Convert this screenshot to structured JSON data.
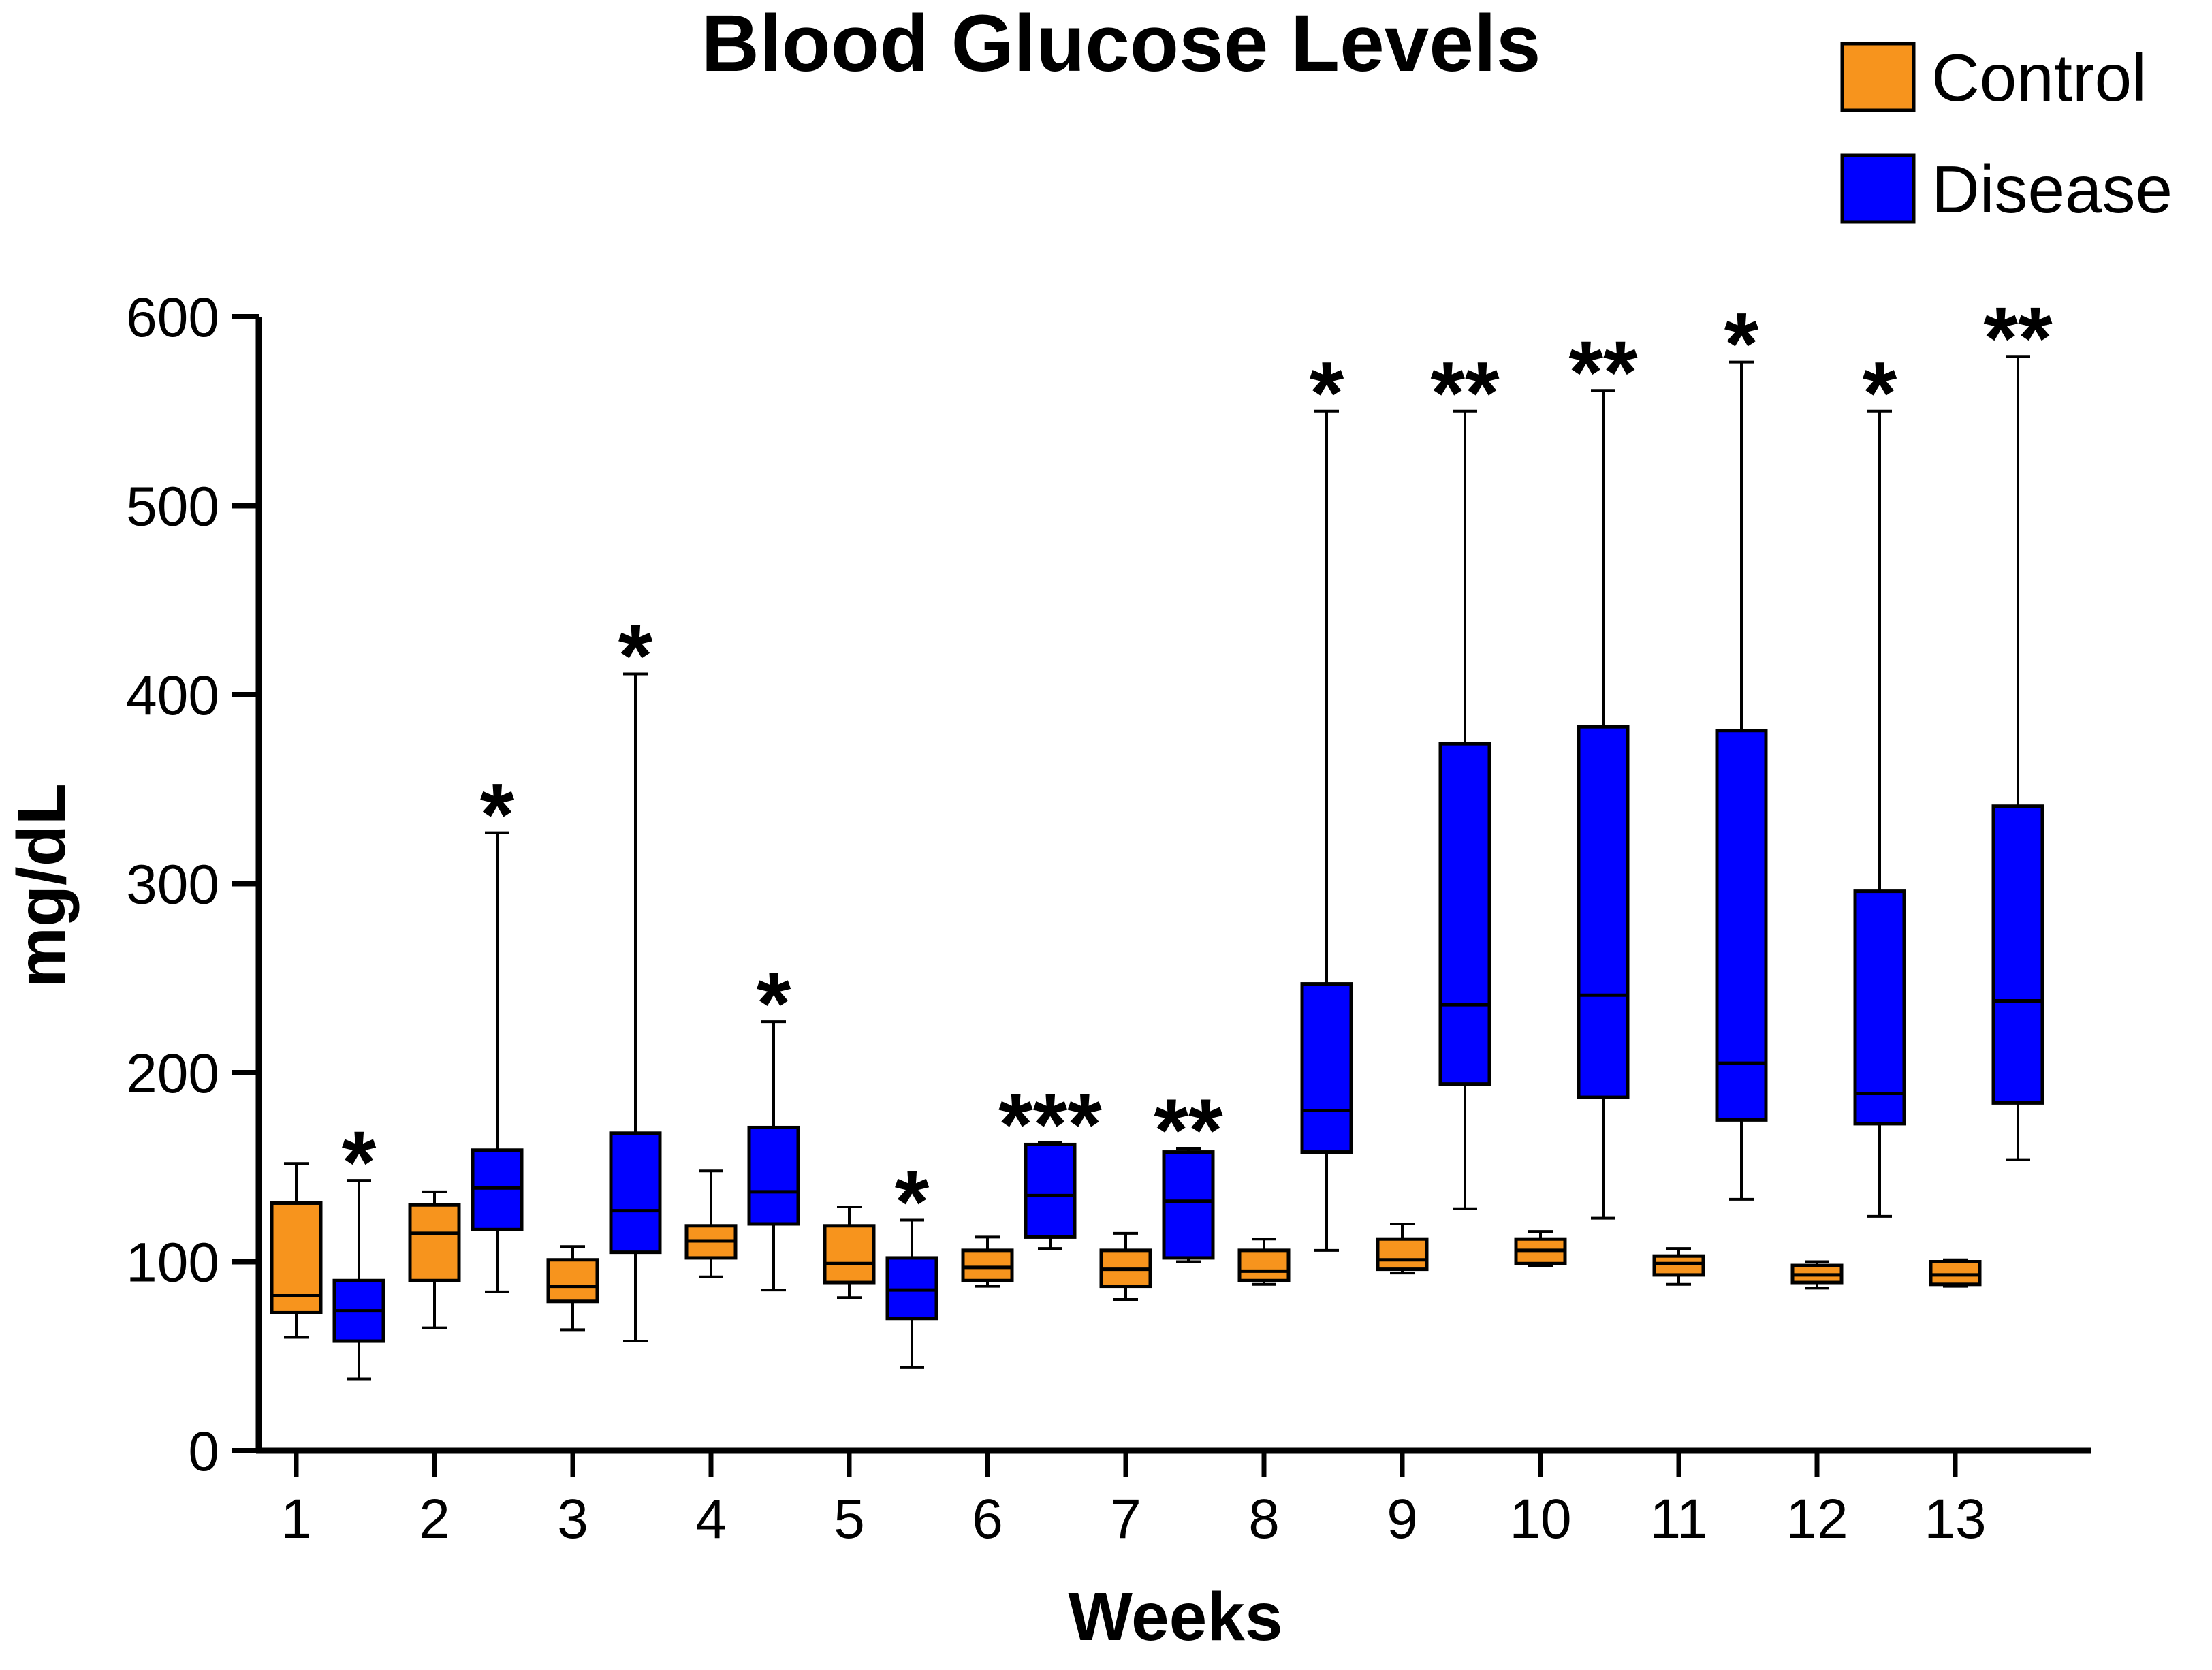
{
  "chart_data": {
    "type": "box",
    "title": "Blood Glucose Levels",
    "xlabel": "Weeks",
    "ylabel": "mg/dL",
    "ylim": [
      0,
      600
    ],
    "yticks": [
      0,
      100,
      200,
      300,
      400,
      500,
      600
    ],
    "categories": [
      "1",
      "2",
      "3",
      "4",
      "5",
      "6",
      "7",
      "8",
      "9",
      "10",
      "11",
      "12",
      "13"
    ],
    "legend": {
      "position": "top-right"
    },
    "series": [
      {
        "name": "Control",
        "color": "#F7941D",
        "boxes": [
          {
            "min": 60,
            "q1": 73,
            "median": 82,
            "q3": 131,
            "max": 152
          },
          {
            "min": 65,
            "q1": 90,
            "median": 115,
            "q3": 130,
            "max": 137
          },
          {
            "min": 64,
            "q1": 79,
            "median": 87,
            "q3": 101,
            "max": 108
          },
          {
            "min": 92,
            "q1": 102,
            "median": 111,
            "q3": 119,
            "max": 148
          },
          {
            "min": 81,
            "q1": 89,
            "median": 99,
            "q3": 119,
            "max": 129
          },
          {
            "min": 87,
            "q1": 90,
            "median": 97,
            "q3": 106,
            "max": 113
          },
          {
            "min": 80,
            "q1": 87,
            "median": 96,
            "q3": 106,
            "max": 115
          },
          {
            "min": 88,
            "q1": 90,
            "median": 95,
            "q3": 106,
            "max": 112
          },
          {
            "min": 94,
            "q1": 96,
            "median": 101,
            "q3": 112,
            "max": 120
          },
          {
            "min": 98,
            "q1": 99,
            "median": 106,
            "q3": 112,
            "max": 116
          },
          {
            "min": 88,
            "q1": 93,
            "median": 99,
            "q3": 103,
            "max": 107
          },
          {
            "min": 86,
            "q1": 89,
            "median": 93,
            "q3": 98,
            "max": 100
          },
          {
            "min": 87,
            "q1": 88,
            "median": 93,
            "q3": 100,
            "max": 101
          }
        ]
      },
      {
        "name": "Disease",
        "color": "#0000FF",
        "boxes": [
          {
            "min": 38,
            "q1": 58,
            "median": 74,
            "q3": 90,
            "max": 143
          },
          {
            "min": 84,
            "q1": 117,
            "median": 139,
            "q3": 159,
            "max": 327
          },
          {
            "min": 58,
            "q1": 105,
            "median": 127,
            "q3": 168,
            "max": 411
          },
          {
            "min": 85,
            "q1": 120,
            "median": 137,
            "q3": 171,
            "max": 227
          },
          {
            "min": 44,
            "q1": 70,
            "median": 85,
            "q3": 102,
            "max": 122
          },
          {
            "min": 107,
            "q1": 113,
            "median": 135,
            "q3": 162,
            "max": 163
          },
          {
            "min": 100,
            "q1": 102,
            "median": 132,
            "q3": 158,
            "max": 160
          },
          {
            "min": 106,
            "q1": 158,
            "median": 180,
            "q3": 247,
            "max": 550
          },
          {
            "min": 128,
            "q1": 194,
            "median": 236,
            "q3": 374,
            "max": 550
          },
          {
            "min": 123,
            "q1": 187,
            "median": 241,
            "q3": 383,
            "max": 561
          },
          {
            "min": 133,
            "q1": 175,
            "median": 205,
            "q3": 381,
            "max": 576
          },
          {
            "min": 124,
            "q1": 173,
            "median": 189,
            "q3": 296,
            "max": 550
          },
          {
            "min": 154,
            "q1": 184,
            "median": 238,
            "q3": 341,
            "max": 579
          }
        ]
      }
    ],
    "significance": [
      "*",
      "*",
      "*",
      "*",
      "*",
      "***",
      "**",
      "*",
      "**",
      "**",
      "*",
      "*",
      "**"
    ]
  }
}
